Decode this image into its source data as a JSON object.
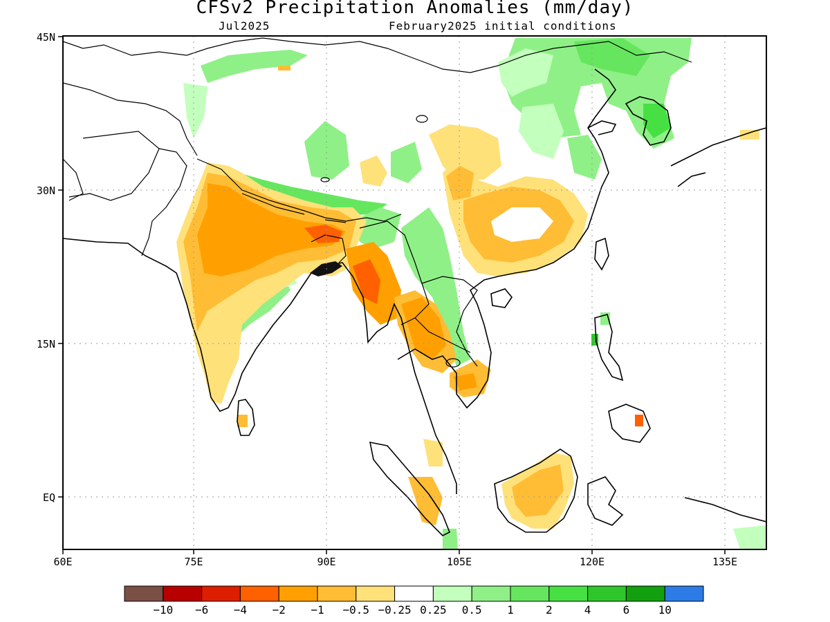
{
  "title": "CFSv2 Precipitation Anomalies (mm/day)",
  "subtitle_left": "Jul2025",
  "subtitle_right": "February2025 initial conditions",
  "lat_labels": [
    "45N",
    "30N",
    "15N",
    "EQ"
  ],
  "lon_labels": [
    "60E",
    "75E",
    "90E",
    "105E",
    "120E",
    "135E"
  ],
  "colorbar": {
    "colors": [
      "#7a5045",
      "#b80000",
      "#dd1e00",
      "#ff6000",
      "#ffa000",
      "#ffbd35",
      "#ffe17a",
      "#ffffff",
      "#c3ffbd",
      "#8ff087",
      "#66e65e",
      "#46e043",
      "#2fc62b",
      "#12a00f",
      "#2d7be6"
    ],
    "labels": [
      "−10",
      "−6",
      "−4",
      "−2",
      "−1",
      "−0.5",
      "−0.25",
      "0.25",
      "0.5",
      "1",
      "2",
      "4",
      "6",
      "10"
    ]
  }
}
